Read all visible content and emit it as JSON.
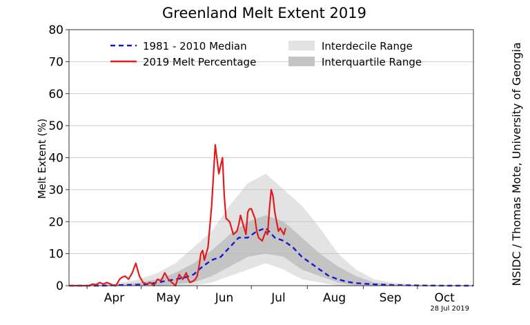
{
  "chart_data": {
    "type": "line",
    "title": "Greenland Melt Extent 2019",
    "ylabel": "Melt Extent (%)",
    "xlabel": "",
    "ylim": [
      0,
      80
    ],
    "xlim": [
      81,
      305
    ],
    "yticks": [
      0,
      10,
      20,
      30,
      40,
      50,
      60,
      70,
      80
    ],
    "xticks": [
      {
        "label": "Apr",
        "doy": 91
      },
      {
        "label": "May",
        "doy": 121
      },
      {
        "label": "Jun",
        "doy": 152
      },
      {
        "label": "Jul",
        "doy": 182
      },
      {
        "label": "Aug",
        "doy": 213
      },
      {
        "label": "Sep",
        "doy": 244
      },
      {
        "label": "Oct",
        "doy": 274
      }
    ],
    "grid": "horizontal",
    "legend_position": "top",
    "credit": "NSIDC / Thomas Mote, University of Georgia",
    "date_stamp": "28 Jul 2019",
    "legend": {
      "median": "1981 - 2010 Median",
      "melt": "2019 Melt Percentage",
      "interdecile": "Interdecile Range",
      "interquartile": "Interquartile Range"
    },
    "colors": {
      "median": "#1515d0",
      "melt": "#e31a1c",
      "interdecile": "#e3e3e3",
      "interquartile": "#c4c4c4"
    },
    "series": [
      {
        "name": "2019 Melt Percentage",
        "x": [
          81,
          85,
          89,
          92,
          94,
          96,
          98,
          100,
          102,
          104,
          106,
          107,
          108,
          109,
          110,
          112,
          114,
          116,
          118,
          119,
          120,
          122,
          124,
          126,
          128,
          130,
          132,
          134,
          136,
          138,
          140,
          142,
          144,
          146,
          147,
          148,
          150,
          151,
          152,
          153,
          154,
          155,
          156,
          157,
          158,
          160,
          162,
          164,
          166,
          167,
          168,
          170,
          172,
          174,
          175,
          176,
          177,
          178,
          179,
          180,
          181,
          182,
          184,
          185,
          186,
          188,
          190,
          191,
          192,
          193,
          194,
          195,
          196,
          197,
          198,
          200,
          201
        ],
        "y": [
          0,
          0,
          0,
          0,
          0.5,
          0.3,
          1,
          0.5,
          1,
          0.5,
          0,
          0,
          1,
          2,
          2.5,
          3,
          2,
          4,
          7,
          5,
          3,
          1,
          0.5,
          1,
          0,
          2,
          1.5,
          4,
          2,
          1,
          0,
          3.5,
          2,
          4,
          2,
          1,
          1.5,
          2,
          3,
          6,
          10,
          11,
          8,
          10,
          12,
          25,
          44,
          35,
          40,
          28,
          21,
          20,
          16,
          17,
          19,
          22,
          20,
          18,
          16,
          23,
          24,
          24,
          21,
          17,
          15,
          14,
          17,
          16,
          24,
          30,
          28,
          23,
          20,
          17,
          18,
          16,
          18
        ]
      },
      {
        "name": "1981 - 2010 Median",
        "x": [
          81,
          100,
          110,
          120,
          125,
          130,
          135,
          140,
          145,
          150,
          155,
          160,
          165,
          170,
          175,
          180,
          185,
          190,
          195,
          200,
          205,
          210,
          215,
          220,
          225,
          230,
          235,
          240,
          250,
          260,
          270,
          280,
          290,
          305
        ],
        "y": [
          0,
          0,
          0.2,
          0.3,
          0.5,
          1,
          1.5,
          2,
          2.5,
          3.5,
          6,
          8,
          9,
          12,
          15,
          15,
          17,
          18,
          15,
          14,
          12,
          9,
          7,
          5,
          3,
          2,
          1.2,
          0.8,
          0.4,
          0.2,
          0.1,
          0.05,
          0,
          0
        ]
      }
    ],
    "bands": {
      "x": [
        81,
        100,
        110,
        120,
        130,
        140,
        150,
        160,
        170,
        180,
        190,
        200,
        210,
        220,
        230,
        240,
        250,
        260,
        270,
        280,
        290,
        305
      ],
      "interdecile_low": [
        0,
        0,
        0,
        0,
        0,
        0,
        0,
        1,
        3,
        5,
        7,
        5,
        2,
        1,
        0,
        0,
        0,
        0,
        0,
        0,
        0,
        0
      ],
      "interdecile_high": [
        0,
        0.5,
        1,
        2,
        4,
        7,
        12,
        17,
        25,
        32,
        35,
        30,
        25,
        18,
        10,
        5,
        2,
        1,
        0.5,
        0.2,
        0,
        0
      ],
      "interquartile_low": [
        0,
        0,
        0,
        0,
        0,
        0.5,
        1,
        3,
        6,
        9,
        10,
        9,
        5,
        3,
        1,
        0,
        0,
        0,
        0,
        0,
        0,
        0
      ],
      "interquartile_high": [
        0,
        0.2,
        0.5,
        1,
        2,
        4,
        7,
        11,
        16,
        20,
        22,
        20,
        15,
        10,
        6,
        3,
        1,
        0.5,
        0.2,
        0,
        0,
        0
      ]
    }
  }
}
